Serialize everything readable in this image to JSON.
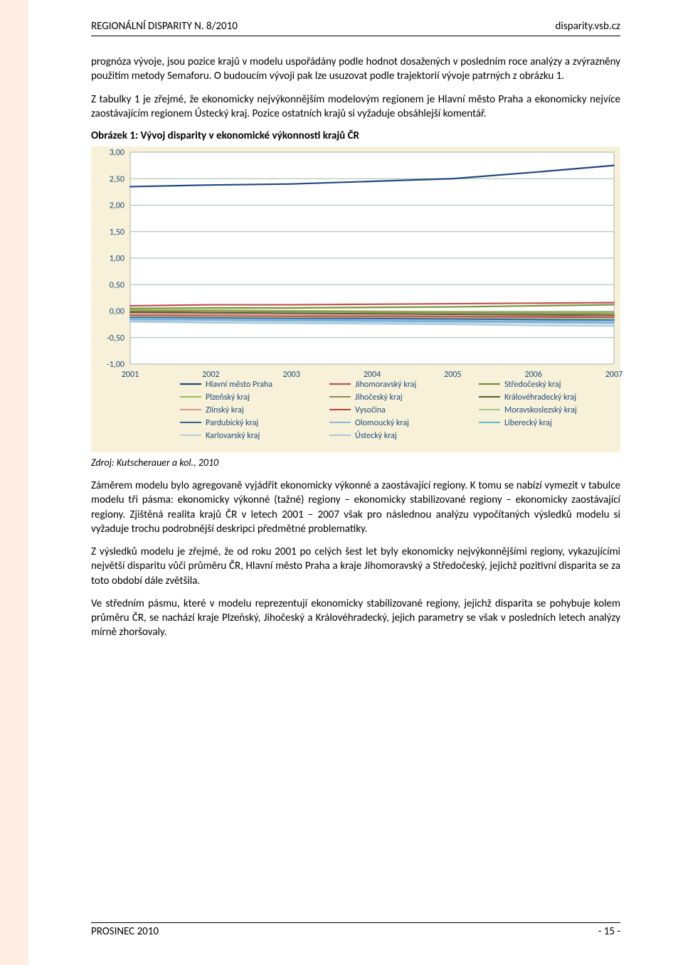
{
  "header": {
    "left": "REGIONÁLNÍ DISPARITY N. 8/2010",
    "right": "disparity.vsb.cz"
  },
  "paragraphs": {
    "p1": "prognóza vývoje, jsou pozice krajů v modelu uspořádány podle hodnot dosažených v posledním roce analýzy a zvýrazněny použitím metody Semaforu. O budoucím vývoji pak lze usuzovat podle trajektorií vývoje patrných z obrázku 1.",
    "p2": "Z tabulky 1 je zřejmé, že ekonomicky nejvýkonnějším modelovým regionem je Hlavní město Praha a ekonomicky nejvíce zaostávajícím regionem Ústecký kraj. Pozice ostatních krajů si vyžaduje obsáhlejší komentář.",
    "p3": "Záměrem modelu bylo agregovaně vyjádřit ekonomicky výkonné a zaostávající regiony. K tomu se nabízí vymezit v tabulce modelu tři pásma: ekonomicky výkonné (tažné) regiony – ekonomicky stabilizované regiony – ekonomicky zaostávající regiony. Zjištěná realita krajů ČR v letech 2001 – 2007 však pro následnou analýzu vypočítaných výsledků modelu si vyžaduje trochu podrobnější deskripci předmětné problematiky.",
    "p4": "Z výsledků modelu je zřejmé, že od roku 2001 po celých šest let byly ekonomicky nejvýkonnějšími regiony, vykazujícími největší disparitu vůči průměru ČR, Hlavní město Praha a kraje Jihomoravský a Středočeský, jejichž pozitivní disparita se za toto období dále zvětšila.",
    "p5": "Ve středním pásmu, které v modelu reprezentují ekonomicky stabilizované regiony, jejichž disparita se pohybuje kolem průměru ČR, se nachází kraje Plzeňský, Jihočeský a Královéhradecký, jejich parametry se však v posledních letech analýzy mírně zhoršovaly."
  },
  "figure_caption": "Obrázek 1: Vývoj disparity v ekonomické výkonnosti krajů ČR",
  "source": "Zdroj: Kutscherauer a kol., 2010",
  "footer": {
    "left": "PROSINEC 2010",
    "right": "- 15 -"
  },
  "chart": {
    "type": "line",
    "background_color": "#f6f1d8",
    "plot_bg": "#ffffff",
    "grid_color": "#9fb9a4",
    "grid_width": 1,
    "axis_color": "#000000",
    "label_color": "#1f497d",
    "label_fontsize": 12,
    "tick_fontsize": 12,
    "ylim": [
      -1.0,
      3.0
    ],
    "ytick_step": 0.5,
    "yticks": [
      "-1,00",
      "-0,50",
      "0,00",
      "0,50",
      "1,00",
      "1,50",
      "2,00",
      "2,50",
      "3,00"
    ],
    "xlabels": [
      "2001",
      "2002",
      "2003",
      "2004",
      "2005",
      "2006",
      "2007"
    ],
    "legend_cols": 3,
    "series": [
      {
        "name": "Hlavní město Praha",
        "color": "#1f497d",
        "width": 2.2,
        "values": [
          2.35,
          2.38,
          2.4,
          2.45,
          2.5,
          2.62,
          2.75
        ]
      },
      {
        "name": "Jihomoravský kraj",
        "color": "#c0504d",
        "width": 2.2,
        "values": [
          0.1,
          0.12,
          0.12,
          0.13,
          0.14,
          0.15,
          0.16
        ]
      },
      {
        "name": "Středočeský kraj",
        "color": "#77933c",
        "width": 2.2,
        "values": [
          0.05,
          0.06,
          0.06,
          0.07,
          0.08,
          0.1,
          0.12
        ]
      },
      {
        "name": "Plzeňský kraj",
        "color": "#9bbb59",
        "width": 2,
        "values": [
          0.02,
          0.02,
          0.01,
          0.0,
          -0.01,
          -0.02,
          -0.02
        ]
      },
      {
        "name": "Jihočeský kraj",
        "color": "#948a54",
        "width": 2,
        "values": [
          0.0,
          0.0,
          -0.01,
          -0.02,
          -0.03,
          -0.04,
          -0.05
        ]
      },
      {
        "name": "Královéhradecký kraj",
        "color": "#4f6228",
        "width": 2,
        "values": [
          -0.02,
          -0.03,
          -0.04,
          -0.05,
          -0.06,
          -0.07,
          -0.08
        ]
      },
      {
        "name": "Zlínský kraj",
        "color": "#d99694",
        "width": 2,
        "values": [
          -0.05,
          -0.06,
          -0.07,
          -0.08,
          -0.09,
          -0.1,
          -0.1
        ]
      },
      {
        "name": "Vysočina",
        "color": "#bf3f3f",
        "width": 2,
        "values": [
          -0.08,
          -0.09,
          -0.1,
          -0.1,
          -0.11,
          -0.11,
          -0.12
        ]
      },
      {
        "name": "Moravskoslezský kraj",
        "color": "#a9c490",
        "width": 2,
        "values": [
          -0.1,
          -0.11,
          -0.12,
          -0.12,
          -0.13,
          -0.14,
          -0.14
        ]
      },
      {
        "name": "Pardubický kraj",
        "color": "#376092",
        "width": 2,
        "values": [
          -0.12,
          -0.13,
          -0.14,
          -0.14,
          -0.15,
          -0.16,
          -0.17
        ]
      },
      {
        "name": "Olomoucký kraj",
        "color": "#8db4e3",
        "width": 2,
        "values": [
          -0.14,
          -0.15,
          -0.16,
          -0.17,
          -0.18,
          -0.19,
          -0.19
        ]
      },
      {
        "name": "Liberecký kraj",
        "color": "#60b6cf",
        "width": 2,
        "values": [
          -0.16,
          -0.17,
          -0.18,
          -0.19,
          -0.2,
          -0.21,
          -0.22
        ]
      },
      {
        "name": "Karlovarský kraj",
        "color": "#b8cce4",
        "width": 2,
        "values": [
          -0.18,
          -0.19,
          -0.2,
          -0.21,
          -0.22,
          -0.23,
          -0.24
        ]
      },
      {
        "name": "Ústecký kraj",
        "color": "#a6c7d8",
        "width": 2,
        "values": [
          -0.2,
          -0.22,
          -0.23,
          -0.24,
          -0.25,
          -0.27,
          -0.28
        ]
      }
    ],
    "legend_layout": [
      [
        "Hlavní město Praha",
        "Jihomoravský kraj",
        "Středočeský kraj"
      ],
      [
        "Plzeňský kraj",
        "Jihočeský kraj",
        "Královéhradecký kraj"
      ],
      [
        "Zlínský kraj",
        "Vysočina",
        "Moravskoslezský kraj"
      ],
      [
        "Pardubický kraj",
        "Olomoucký kraj",
        "Liberecký kraj"
      ],
      [
        "Karlovarský kraj",
        "Ústecký kraj",
        ""
      ]
    ]
  }
}
